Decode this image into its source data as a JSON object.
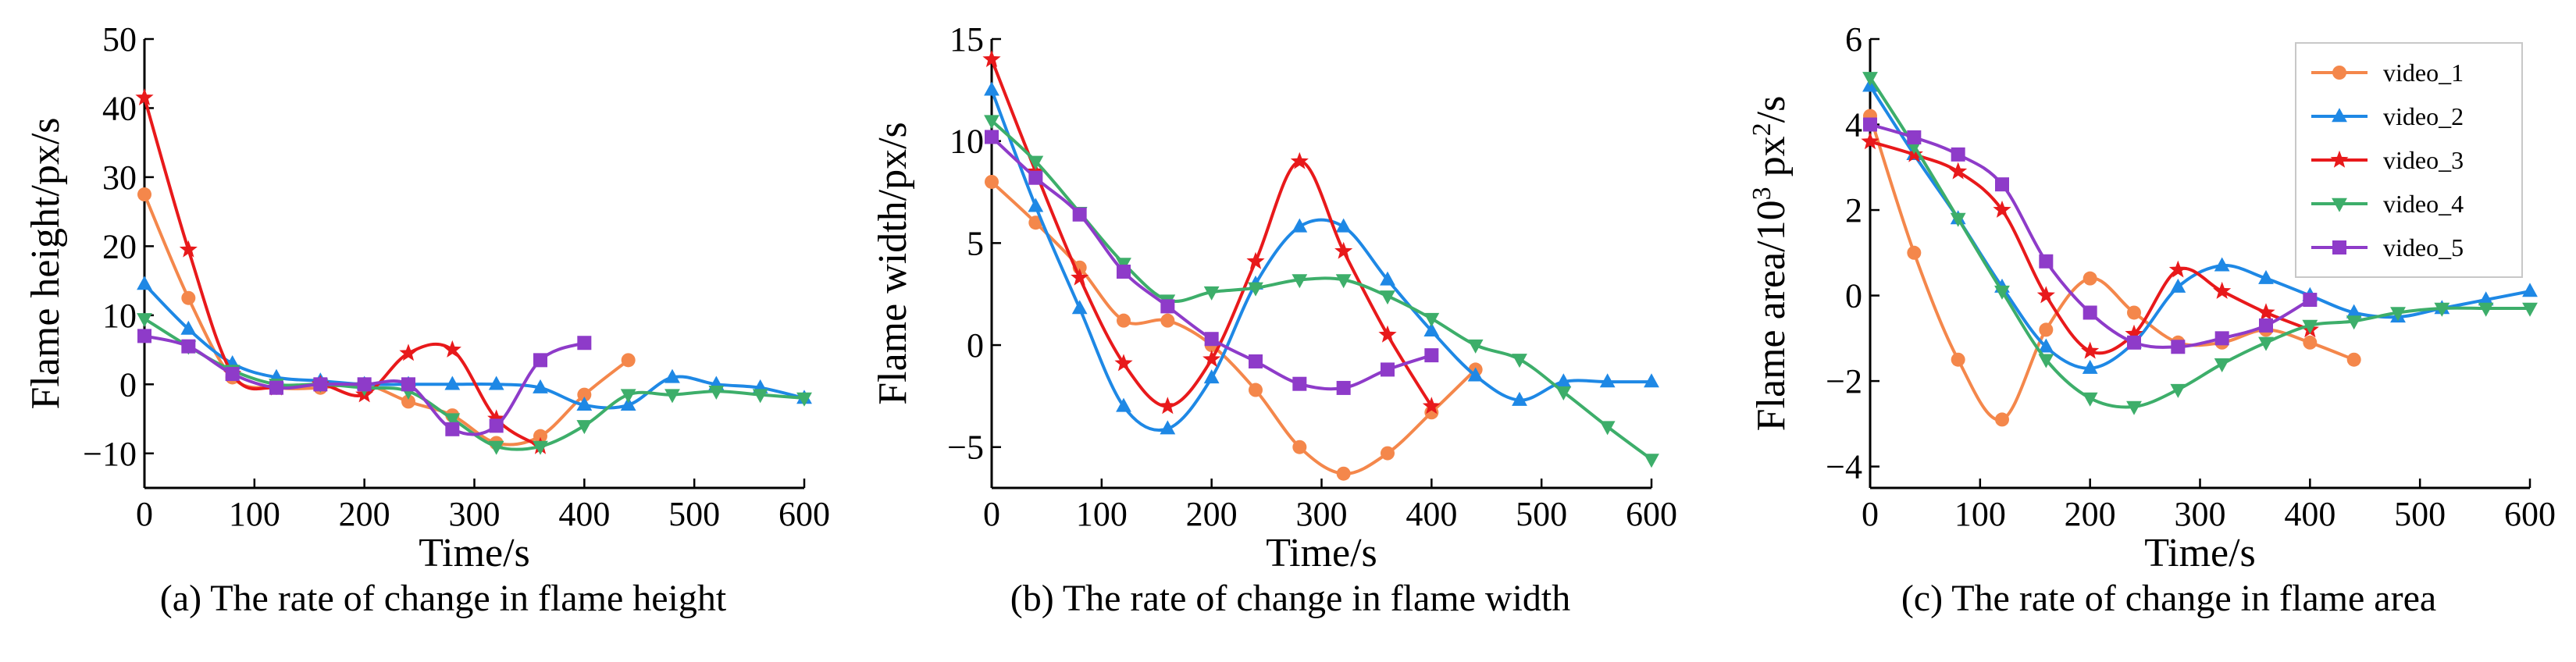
{
  "figure": {
    "captions": [
      "(a) The rate of change in flame height",
      "(b) The rate of change in flame width",
      "(c) The rate of change in flame area"
    ]
  },
  "series_colors": {
    "video_1": "#F4874B",
    "video_2": "#1E88E5",
    "video_3": "#E8191B",
    "video_4": "#3DAE6A",
    "video_5": "#8E3BC9"
  },
  "chart_data": [
    {
      "type": "line",
      "title": "",
      "caption": "(a) The rate of change in flame height",
      "xlabel": "Time/s",
      "ylabel": "Flame height/px/s",
      "xlim": [
        0,
        600
      ],
      "ylim": [
        -15,
        50
      ],
      "xticks": [
        0,
        100,
        200,
        300,
        400,
        500,
        600
      ],
      "yticks": [
        -10,
        0,
        10,
        20,
        30,
        40,
        50
      ],
      "legend": false,
      "series": [
        {
          "name": "video_1",
          "marker": "circle",
          "x": [
            0,
            40,
            80,
            120,
            160,
            200,
            240,
            280,
            320,
            360,
            400,
            440
          ],
          "y": [
            27.5,
            12.5,
            1,
            -0.5,
            -0.5,
            0,
            -2.5,
            -4.5,
            -8.5,
            -7.5,
            -1.5,
            3.5
          ]
        },
        {
          "name": "video_2",
          "marker": "triangle-up",
          "x": [
            0,
            40,
            80,
            120,
            160,
            200,
            240,
            280,
            320,
            360,
            400,
            440,
            480,
            520,
            560,
            600
          ],
          "y": [
            14.5,
            8,
            3,
            1,
            0.5,
            0,
            0,
            0,
            0,
            -0.5,
            -3,
            -3,
            1,
            0,
            -0.5,
            -2
          ]
        },
        {
          "name": "video_3",
          "marker": "star",
          "x": [
            0,
            40,
            80,
            120,
            160,
            200,
            240,
            280,
            320,
            360
          ],
          "y": [
            41.5,
            19.5,
            1.5,
            -0.5,
            0,
            -1.5,
            4.5,
            5,
            -5,
            -9
          ]
        },
        {
          "name": "video_4",
          "marker": "triangle-down",
          "x": [
            0,
            40,
            80,
            120,
            160,
            200,
            240,
            280,
            320,
            360,
            400,
            440,
            480,
            520,
            560,
            600
          ],
          "y": [
            9.5,
            5.5,
            2,
            0,
            0,
            -0.5,
            -1,
            -5,
            -9,
            -9,
            -6,
            -1.5,
            -1.5,
            -1,
            -1.5,
            -2
          ]
        },
        {
          "name": "video_5",
          "marker": "square",
          "x": [
            0,
            40,
            80,
            120,
            160,
            200,
            240,
            280,
            320,
            360,
            400
          ],
          "y": [
            7,
            5.5,
            1.5,
            -0.5,
            0,
            0,
            0,
            -6.5,
            -6,
            3.5,
            6
          ]
        }
      ]
    },
    {
      "type": "line",
      "title": "",
      "caption": "(b) The rate of change in flame width",
      "xlabel": "Time/s",
      "ylabel": "Flame width/px/s",
      "xlim": [
        0,
        600
      ],
      "ylim": [
        -7,
        15
      ],
      "xticks": [
        0,
        100,
        200,
        300,
        400,
        500,
        600
      ],
      "yticks": [
        -5,
        0,
        5,
        10,
        15
      ],
      "legend": false,
      "series": [
        {
          "name": "video_1",
          "marker": "circle",
          "x": [
            0,
            40,
            80,
            120,
            160,
            200,
            240,
            280,
            320,
            360,
            400,
            440
          ],
          "y": [
            8,
            6,
            3.8,
            1.2,
            1.2,
            0,
            -2.2,
            -5,
            -6.3,
            -5.3,
            -3.3,
            -1.2
          ]
        },
        {
          "name": "video_2",
          "marker": "triangle-up",
          "x": [
            0,
            40,
            80,
            120,
            160,
            200,
            240,
            280,
            320,
            360,
            400,
            440,
            480,
            520,
            560,
            600
          ],
          "y": [
            12.5,
            6.8,
            1.8,
            -3,
            -4.1,
            -1.6,
            3,
            5.8,
            5.8,
            3.2,
            0.7,
            -1.5,
            -2.7,
            -1.8,
            -1.8,
            -1.8
          ]
        },
        {
          "name": "video_3",
          "marker": "star",
          "x": [
            0,
            40,
            80,
            120,
            160,
            200,
            240,
            280,
            320,
            360,
            400
          ],
          "y": [
            14,
            8.5,
            3.3,
            -0.9,
            -3,
            -0.7,
            4.1,
            9,
            4.6,
            0.5,
            -3
          ]
        },
        {
          "name": "video_4",
          "marker": "triangle-down",
          "x": [
            0,
            40,
            80,
            120,
            160,
            200,
            240,
            280,
            320,
            360,
            400,
            440,
            480,
            520,
            560,
            600
          ],
          "y": [
            11,
            9,
            6.5,
            4,
            2.2,
            2.6,
            2.8,
            3.2,
            3.2,
            2.4,
            1.3,
            0,
            -0.7,
            -2.3,
            -4,
            -5.6
          ]
        },
        {
          "name": "video_5",
          "marker": "square",
          "x": [
            0,
            40,
            80,
            120,
            160,
            200,
            240,
            280,
            320,
            360,
            400
          ],
          "y": [
            10.2,
            8.2,
            6.4,
            3.6,
            1.9,
            0.3,
            -0.8,
            -1.9,
            -2.1,
            -1.2,
            -0.5
          ]
        }
      ]
    },
    {
      "type": "line",
      "title": "",
      "caption": "(c) The rate of change in flame area",
      "xlabel": "Time/s",
      "ylabel": "Flame area/10^3 px^2/s",
      "ylabel_parts": {
        "before": "Flame area/10",
        "sup1": "3",
        "middle": " px",
        "sup2": "2",
        "after": "/s"
      },
      "xlim": [
        0,
        600
      ],
      "ylim": [
        -4.5,
        6
      ],
      "xticks": [
        0,
        100,
        200,
        300,
        400,
        500,
        600
      ],
      "yticks": [
        -4,
        -2,
        0,
        2,
        4,
        6
      ],
      "legend": true,
      "legend_position": "top-right",
      "series": [
        {
          "name": "video_1",
          "marker": "circle",
          "x": [
            0,
            40,
            80,
            120,
            160,
            200,
            240,
            280,
            320,
            360,
            400,
            440
          ],
          "y": [
            4.2,
            1,
            -1.5,
            -2.9,
            -0.8,
            0.4,
            -0.4,
            -1.1,
            -1.1,
            -0.8,
            -1.1,
            -1.5
          ]
        },
        {
          "name": "video_2",
          "marker": "triangle-up",
          "x": [
            0,
            40,
            80,
            120,
            160,
            200,
            240,
            280,
            320,
            360,
            400,
            440,
            480,
            520,
            560,
            600
          ],
          "y": [
            4.9,
            3.3,
            1.8,
            0.2,
            -1.2,
            -1.7,
            -1.1,
            0.2,
            0.7,
            0.4,
            0,
            -0.4,
            -0.5,
            -0.3,
            -0.1,
            0.1
          ]
        },
        {
          "name": "video_3",
          "marker": "star",
          "x": [
            0,
            40,
            80,
            120,
            160,
            200,
            240,
            280,
            320,
            360,
            400
          ],
          "y": [
            3.6,
            3.3,
            2.9,
            2,
            0,
            -1.3,
            -0.9,
            0.6,
            0.1,
            -0.4,
            -0.8
          ]
        },
        {
          "name": "video_4",
          "marker": "triangle-down",
          "x": [
            0,
            40,
            80,
            120,
            160,
            200,
            240,
            280,
            320,
            360,
            400,
            440,
            480,
            520,
            560,
            600
          ],
          "y": [
            5.1,
            3.5,
            1.8,
            0.1,
            -1.5,
            -2.4,
            -2.6,
            -2.2,
            -1.6,
            -1.1,
            -0.7,
            -0.6,
            -0.4,
            -0.3,
            -0.3,
            -0.3
          ]
        },
        {
          "name": "video_5",
          "marker": "square",
          "x": [
            0,
            40,
            80,
            120,
            160,
            200,
            240,
            280,
            320,
            360,
            400
          ],
          "y": [
            4,
            3.7,
            3.3,
            2.6,
            0.8,
            -0.4,
            -1.1,
            -1.2,
            -1,
            -0.7,
            -0.1
          ]
        }
      ]
    }
  ]
}
